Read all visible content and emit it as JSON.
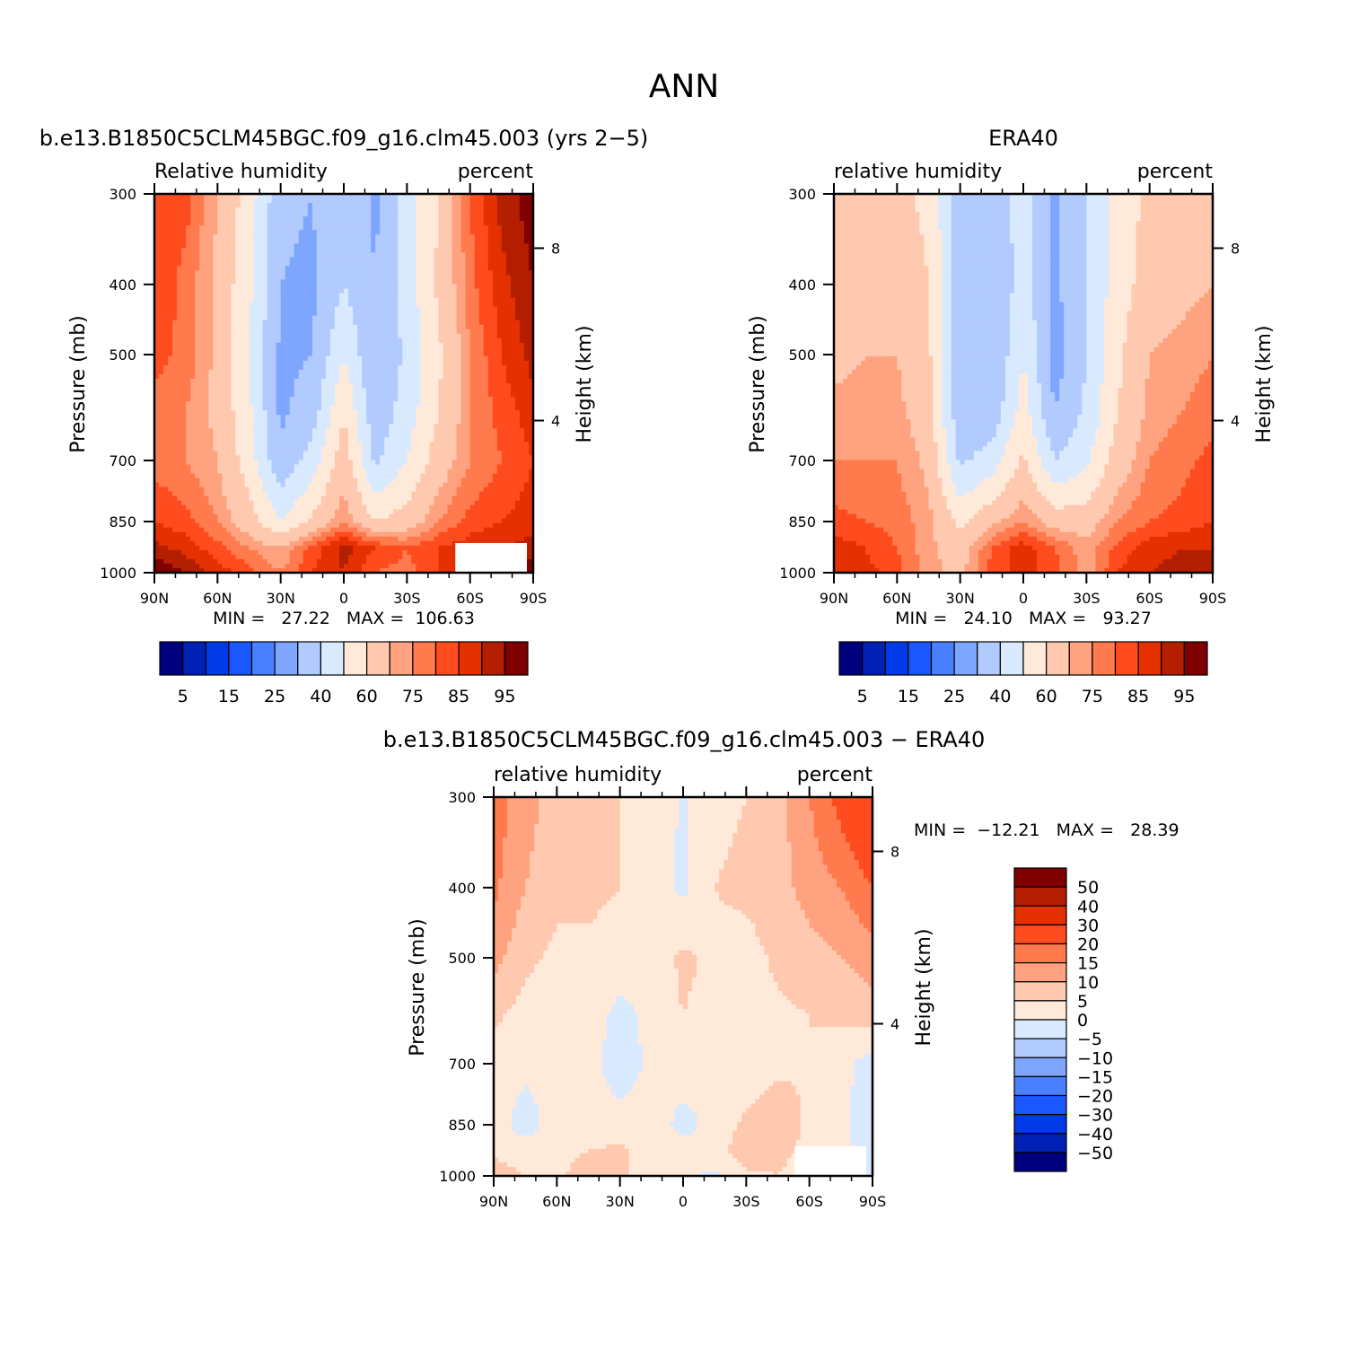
{
  "figure_title": "ANN",
  "colors": {
    "rh_levels": [
      "#00007f",
      "#0021b3",
      "#0039e6",
      "#1b57ff",
      "#4a80ff",
      "#7ea6ff",
      "#b2cbff",
      "#d9eaff",
      "#ffe9d9",
      "#ffc9b0",
      "#ffa27f",
      "#ff7a4d",
      "#ff4c1f",
      "#e53000",
      "#b31f00",
      "#7f0000"
    ],
    "diff_levels": [
      "#00007f",
      "#0021b3",
      "#0039e6",
      "#1b57ff",
      "#4a80ff",
      "#7ea6ff",
      "#b2cbff",
      "#d9eaff",
      "#ffe9d9",
      "#ffc9b0",
      "#ffa27f",
      "#ff7a4d",
      "#ff4c1f",
      "#e53000",
      "#b31f00",
      "#7f0000"
    ],
    "missing": "#ffffff"
  },
  "chart_data": [
    {
      "type": "heatmap",
      "title": "b.e13.B1850C5CLM45BGC.f09_g16.clm45.003 (yrs 2−5)",
      "left_label": "Relative humidity",
      "right_label": "percent",
      "ylabel": "Pressure (mb)",
      "ylabel2": "Height (km)",
      "x_ticks": [
        "90N",
        "60N",
        "30N",
        "0",
        "30S",
        "60S",
        "90S"
      ],
      "y_ticks": [
        "300",
        "400",
        "500",
        "700",
        "850",
        "1000"
      ],
      "y2_ticks": [
        "8",
        "4"
      ],
      "min_max": "MIN =   27.22   MAX =  106.63",
      "colorbar_labels": [
        "5",
        "15",
        "25",
        "40",
        "60",
        "75",
        "85",
        "95"
      ],
      "colorbar_levels": [
        5,
        10,
        15,
        20,
        25,
        30,
        40,
        50,
        60,
        70,
        75,
        80,
        85,
        90,
        95
      ],
      "lat": [
        90,
        75,
        60,
        45,
        30,
        15,
        0,
        -15,
        -30,
        -45,
        -60,
        -75,
        -90
      ],
      "pressure": [
        300,
        400,
        500,
        600,
        700,
        850,
        925,
        1000
      ],
      "values": [
        [
          80,
          82,
          70,
          55,
          32,
          30,
          40,
          28,
          45,
          60,
          80,
          92,
          98
        ],
        [
          85,
          78,
          68,
          52,
          30,
          28,
          40,
          30,
          45,
          62,
          78,
          88,
          95
        ],
        [
          82,
          78,
          68,
          50,
          28,
          30,
          50,
          30,
          42,
          58,
          75,
          85,
          92
        ],
        [
          78,
          75,
          68,
          52,
          28,
          35,
          60,
          33,
          45,
          60,
          75,
          82,
          88
        ],
        [
          78,
          75,
          70,
          55,
          32,
          45,
          66,
          38,
          50,
          65,
          75,
          80,
          85
        ],
        [
          85,
          82,
          75,
          65,
          50,
          62,
          75,
          60,
          65,
          75,
          82,
          85,
          88
        ],
        [
          92,
          88,
          82,
          75,
          70,
          82,
          92,
          85,
          80,
          85,
          88,
          90,
          92
        ],
        [
          100,
          95,
          88,
          82,
          75,
          85,
          90,
          80,
          78,
          85,
          92,
          96,
          100
        ]
      ],
      "missing_region": "60S-90S, 925-1000 mb"
    },
    {
      "type": "heatmap",
      "title": "ERA40",
      "left_label": "relative humidity",
      "right_label": "percent",
      "ylabel": "Pressure (mb)",
      "ylabel2": "Height (km)",
      "x_ticks": [
        "90N",
        "60N",
        "30N",
        "0",
        "30S",
        "60S",
        "90S"
      ],
      "y_ticks": [
        "300",
        "400",
        "500",
        "700",
        "850",
        "1000"
      ],
      "y2_ticks": [
        "8",
        "4"
      ],
      "min_max": "MIN =   24.10   MAX =   93.27",
      "colorbar_labels": [
        "5",
        "15",
        "25",
        "40",
        "60",
        "75",
        "85",
        "95"
      ],
      "colorbar_levels": [
        5,
        10,
        15,
        20,
        25,
        30,
        40,
        50,
        60,
        70,
        75,
        80,
        85,
        90,
        95
      ],
      "lat": [
        90,
        75,
        60,
        45,
        30,
        15,
        0,
        -15,
        -30,
        -45,
        -60,
        -75,
        -90
      ],
      "pressure": [
        300,
        400,
        500,
        600,
        700,
        850,
        925,
        1000
      ],
      "values": [
        [
          60,
          62,
          62,
          58,
          35,
          32,
          45,
          28,
          40,
          55,
          62,
          65,
          65
        ],
        [
          65,
          68,
          68,
          60,
          33,
          30,
          45,
          28,
          40,
          55,
          65,
          68,
          70
        ],
        [
          68,
          70,
          70,
          62,
          32,
          30,
          50,
          25,
          40,
          58,
          70,
          72,
          75
        ],
        [
          72,
          72,
          72,
          65,
          32,
          33,
          55,
          30,
          42,
          60,
          72,
          75,
          78
        ],
        [
          75,
          75,
          75,
          68,
          38,
          45,
          62,
          40,
          48,
          65,
          75,
          78,
          82
        ],
        [
          82,
          80,
          78,
          72,
          58,
          68,
          75,
          66,
          66,
          75,
          80,
          82,
          85
        ],
        [
          88,
          85,
          80,
          72,
          65,
          80,
          88,
          80,
          72,
          82,
          88,
          90,
          90
        ],
        [
          90,
          87,
          82,
          72,
          68,
          82,
          88,
          82,
          72,
          85,
          90,
          92,
          92
        ]
      ]
    },
    {
      "type": "heatmap",
      "title": "b.e13.B1850C5CLM45BGC.f09_g16.clm45.003 − ERA40",
      "left_label": "relative humidity",
      "right_label": "percent",
      "ylabel": "Pressure (mb)",
      "ylabel2": "Height (km)",
      "x_ticks": [
        "90N",
        "60N",
        "30N",
        "0",
        "30S",
        "60S",
        "90S"
      ],
      "y_ticks": [
        "300",
        "400",
        "500",
        "700",
        "850",
        "1000"
      ],
      "y2_ticks": [
        "8",
        "4"
      ],
      "min_max": "MIN =  −12.21   MAX =   28.39",
      "colorbar_labels": [
        "50",
        "40",
        "30",
        "20",
        "15",
        "10",
        "5",
        "0",
        "−5",
        "−10",
        "−15",
        "−20",
        "−30",
        "−40",
        "−50"
      ],
      "colorbar_levels": [
        -50,
        -40,
        -30,
        -20,
        -15,
        -10,
        -5,
        0,
        5,
        10,
        15,
        20,
        30,
        40,
        50
      ],
      "lat": [
        90,
        75,
        60,
        45,
        30,
        15,
        0,
        -15,
        -30,
        -45,
        -60,
        -75,
        -90
      ],
      "pressure": [
        300,
        400,
        500,
        600,
        700,
        850,
        925,
        1000
      ],
      "values": [
        [
          18,
          12,
          8,
          6,
          5,
          4,
          -1,
          4,
          5,
          8,
          15,
          22,
          28
        ],
        [
          16,
          10,
          6,
          6,
          5,
          3,
          -1,
          5,
          6,
          8,
          12,
          15,
          20
        ],
        [
          12,
          6,
          4,
          4,
          3,
          2,
          6,
          4,
          3,
          6,
          8,
          10,
          12
        ],
        [
          6,
          3,
          3,
          3,
          -2,
          2,
          5,
          3,
          3,
          4,
          5,
          6,
          8
        ],
        [
          2,
          1,
          1,
          2,
          -3,
          1,
          3,
          1,
          2,
          4,
          5,
          2,
          -3
        ],
        [
          2,
          -2,
          2,
          3,
          2,
          3,
          -2,
          2,
          6,
          8,
          4,
          1,
          -3
        ],
        [
          4,
          2,
          3,
          5,
          6,
          3,
          2,
          3,
          8,
          6,
          4,
          2,
          -3
        ],
        [
          8,
          5,
          4,
          8,
          6,
          3,
          1,
          -1,
          4,
          5,
          3,
          2,
          -2
        ]
      ],
      "missing_region": "60S-90S, 925-1000 mb"
    }
  ]
}
